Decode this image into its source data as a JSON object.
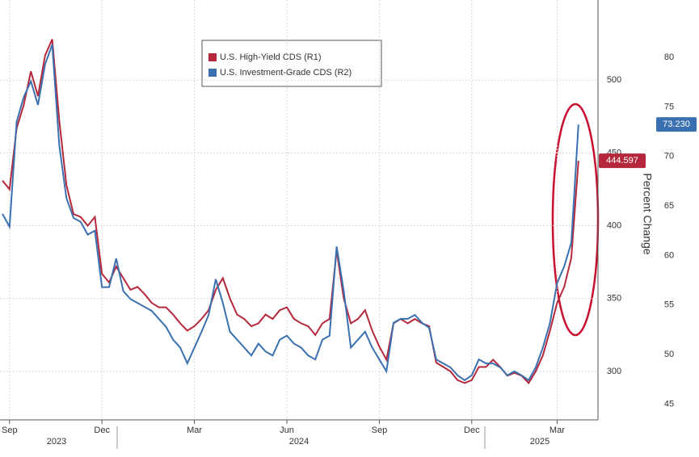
{
  "chart_data": {
    "type": "line",
    "categories": [
      null,
      "Sep",
      null,
      null,
      null,
      null,
      null,
      null,
      null,
      null,
      null,
      null,
      null,
      null,
      "Dec",
      null,
      null,
      null,
      null,
      null,
      null,
      null,
      null,
      null,
      null,
      null,
      null,
      "Mar",
      null,
      null,
      null,
      null,
      null,
      null,
      null,
      null,
      null,
      null,
      null,
      null,
      "Jun",
      null,
      null,
      null,
      null,
      null,
      null,
      null,
      null,
      null,
      null,
      null,
      null,
      "Sep",
      null,
      null,
      null,
      null,
      null,
      null,
      null,
      null,
      null,
      null,
      null,
      null,
      "Dec",
      null,
      null,
      null,
      null,
      null,
      null,
      null,
      null,
      null,
      null,
      null,
      "Mar",
      null,
      null,
      null
    ],
    "year_labels": [
      "2023",
      "2024",
      "2025"
    ],
    "series": [
      {
        "name": "U.S. High-Yield CDS (R1)",
        "color": "#b5283b",
        "axis": "y",
        "values": [
          431,
          425,
          467,
          483,
          506,
          489,
          517,
          528,
          472,
          428,
          408,
          406,
          400,
          406,
          367,
          361,
          372,
          364,
          356,
          358,
          353,
          347,
          344,
          344,
          339,
          333,
          328,
          331,
          336,
          342,
          356,
          364,
          350,
          339,
          336,
          331,
          333,
          339,
          336,
          342,
          344,
          336,
          333,
          331,
          325,
          333,
          336,
          383,
          350,
          333,
          336,
          342,
          328,
          317,
          308,
          333,
          336,
          333,
          336,
          333,
          331,
          306,
          303,
          300,
          294,
          292,
          294,
          303,
          303,
          308,
          303,
          297,
          299,
          297,
          292,
          300,
          311,
          328,
          347,
          358,
          378,
          444.597
        ],
        "last_value_label": "444.597"
      },
      {
        "name": "U.S. Investment-Grade CDS (R2)",
        "color": "#3a70b0",
        "axis": "y2",
        "values": [
          64.2,
          62.9,
          73.5,
          76.0,
          77.6,
          75.2,
          79.3,
          81.3,
          71.1,
          65.8,
          63.8,
          63.4,
          62.1,
          62.5,
          56.8,
          56.8,
          59.7,
          56.4,
          55.6,
          55.2,
          54.8,
          54.4,
          53.6,
          52.8,
          51.5,
          50.7,
          49.1,
          50.7,
          52.3,
          54.0,
          57.6,
          55.2,
          52.3,
          51.5,
          50.7,
          49.9,
          51.1,
          50.3,
          49.9,
          51.5,
          51.9,
          51.1,
          50.7,
          49.9,
          49.5,
          51.5,
          51.9,
          60.9,
          56.4,
          50.7,
          51.5,
          52.3,
          50.7,
          49.5,
          48.3,
          53.2,
          53.6,
          53.6,
          54.0,
          53.2,
          52.7,
          49.5,
          49.1,
          48.7,
          47.9,
          47.4,
          47.9,
          49.5,
          49.1,
          49.1,
          48.7,
          47.9,
          48.3,
          47.9,
          47.4,
          48.7,
          50.7,
          53.2,
          57.2,
          58.9,
          61.3,
          73.23
        ],
        "last_value_label": "73.230"
      }
    ],
    "ylim": [
      266.7,
      555
    ],
    "yticks": [
      300,
      350,
      400,
      450,
      500
    ],
    "y2lim": [
      43.4,
      85.8
    ],
    "y2ticks": [
      45,
      50,
      55,
      60,
      65,
      70,
      75,
      80
    ],
    "y2_label": "Percent Change",
    "grid": true
  }
}
